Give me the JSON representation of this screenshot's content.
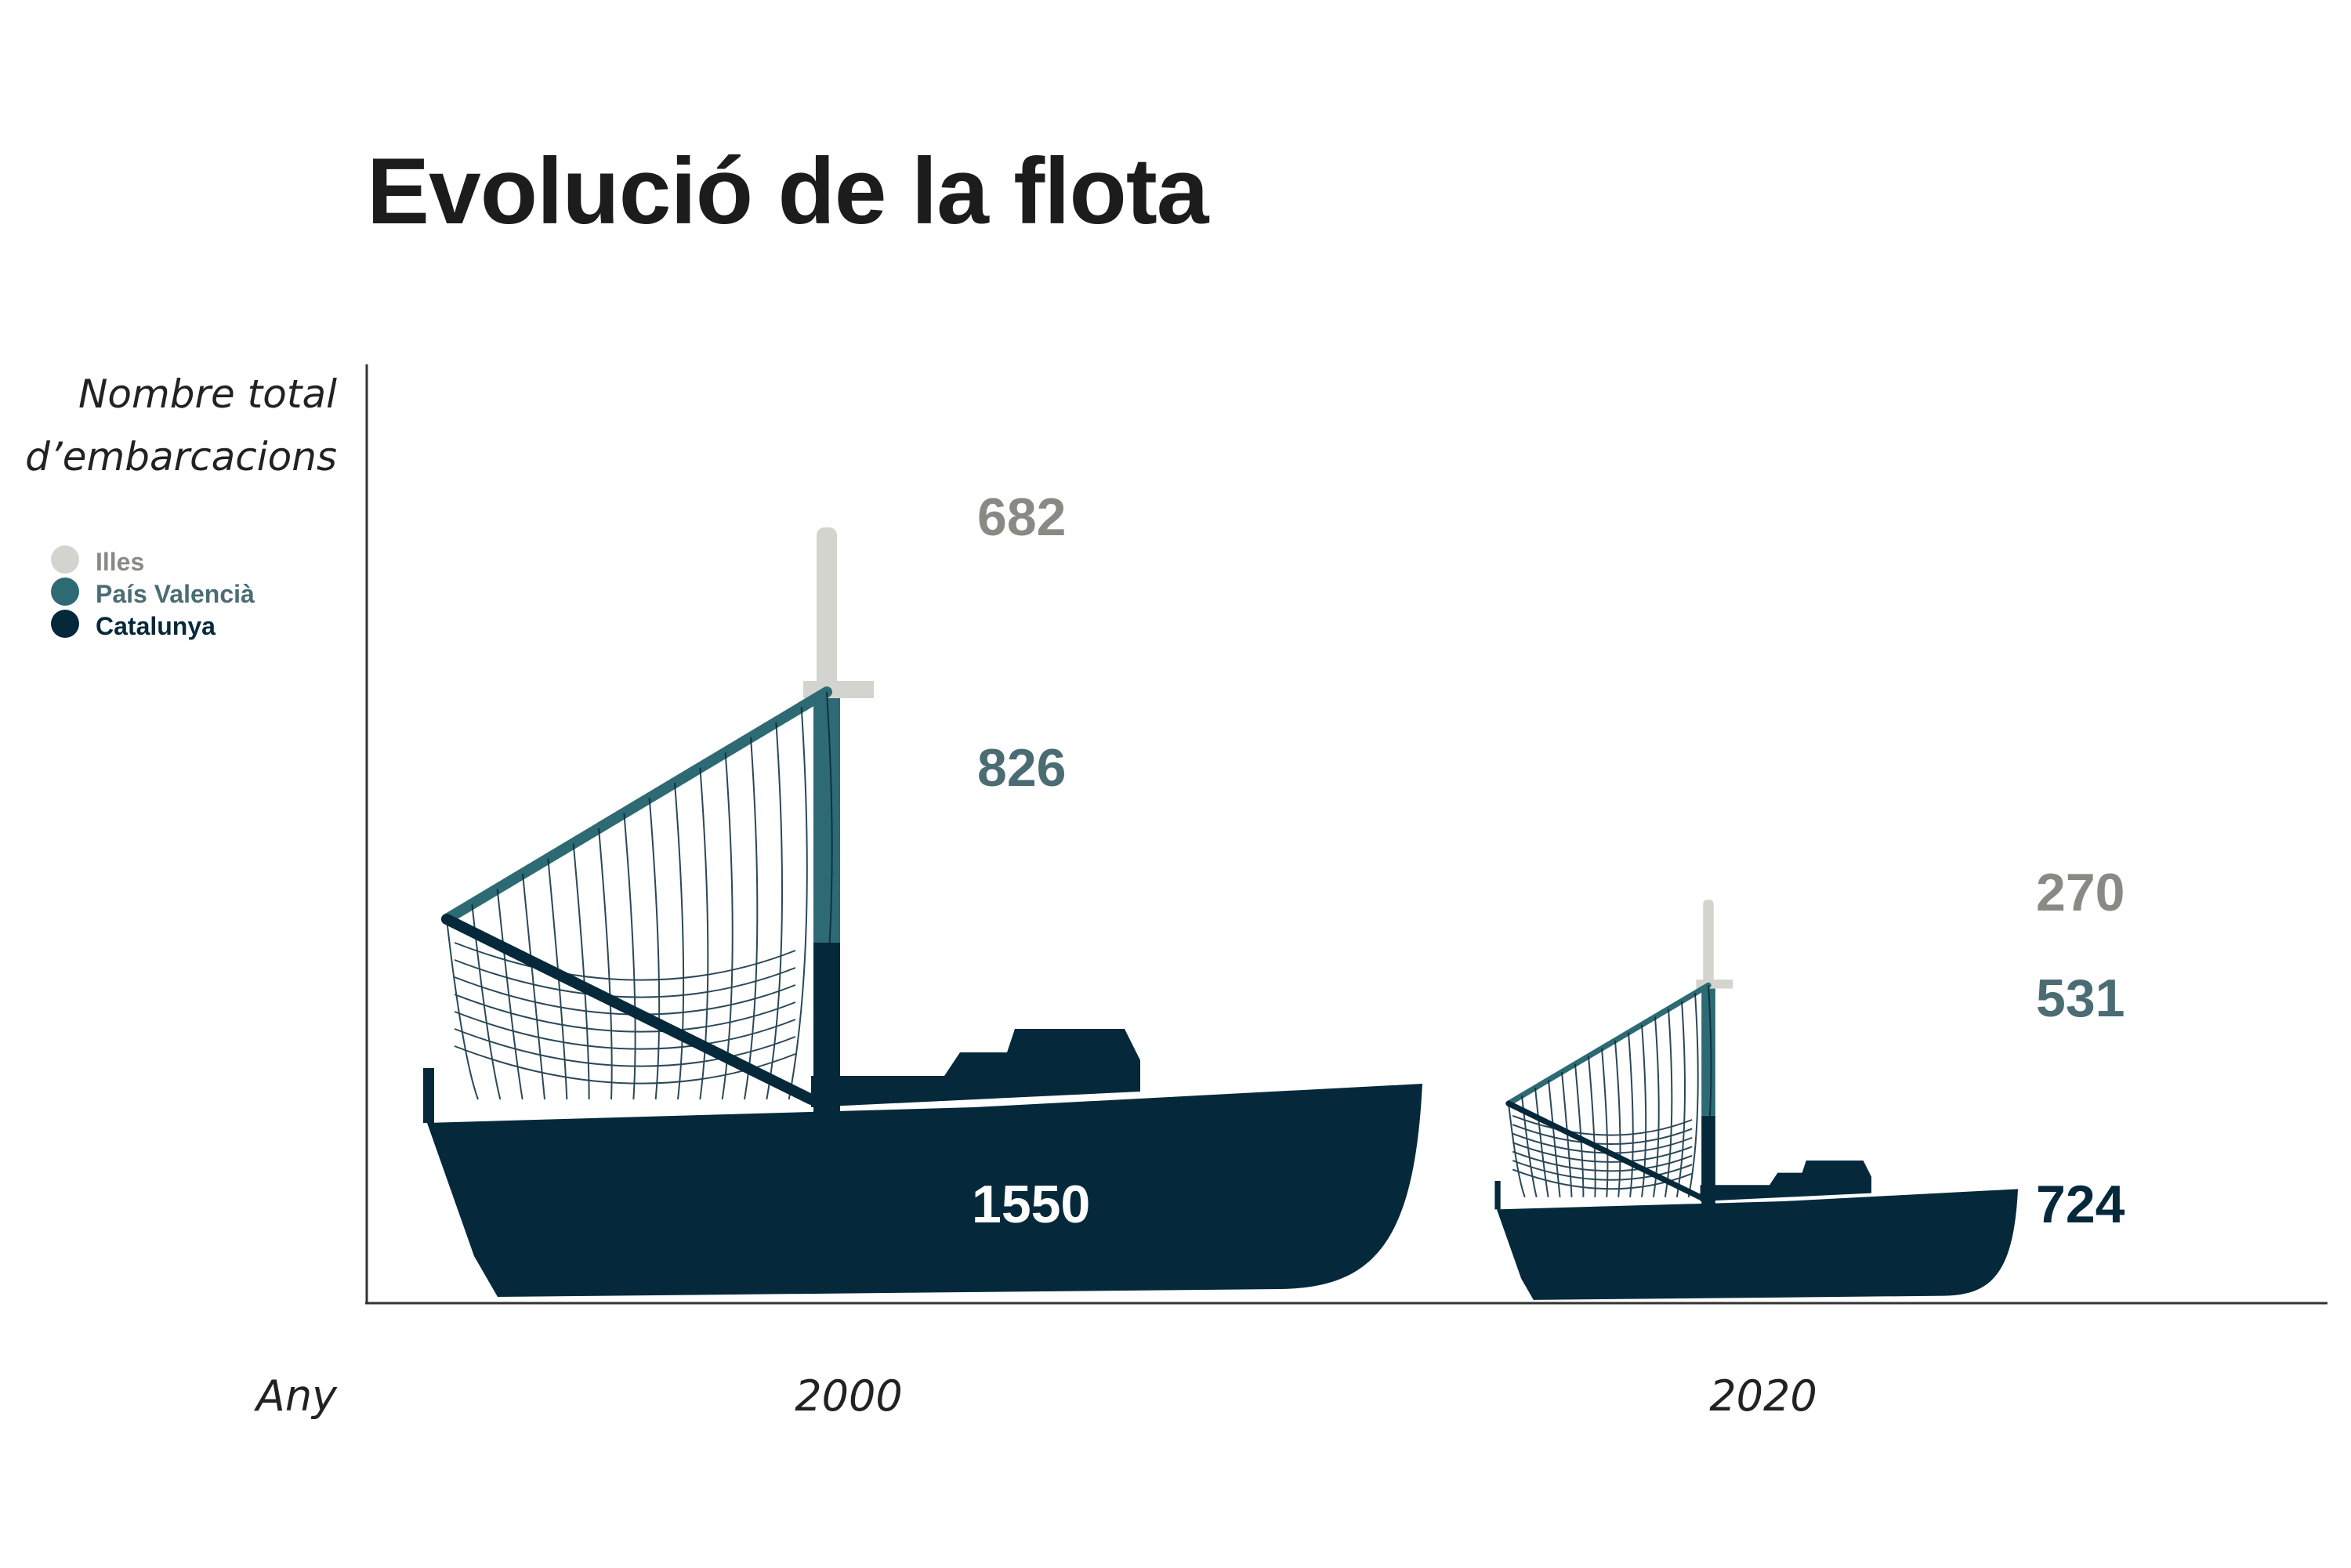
{
  "colors": {
    "illes": "#d4d4cf",
    "illes_text": "#8a8a85",
    "pais_valencia": "#2e6a73",
    "pais_valencia_text": "#4b6c73",
    "catalunya": "#05293b",
    "catalunya_label_inside": "#ffffff",
    "axis": "#333333"
  },
  "chart_data": {
    "type": "bar",
    "title": "Evolució de la flota",
    "ylabel": [
      "Nombre total",
      "d’embarcacions"
    ],
    "xlabel": "Any",
    "categories": [
      "2000",
      "2020"
    ],
    "series": [
      {
        "name": "Illes",
        "values": [
          682,
          270
        ]
      },
      {
        "name": "País Valencià",
        "values": [
          826,
          531
        ]
      },
      {
        "name": "Catalunya",
        "values": [
          1550,
          724
        ]
      }
    ],
    "stacked": true,
    "legend_position": "left",
    "grid": false,
    "value_labels": {
      "2000": {
        "Illes": "682",
        "País Valencià": "826",
        "Catalunya": "1550"
      },
      "2020": {
        "Illes": "270",
        "País Valencià": "531",
        "Catalunya": "724"
      }
    }
  }
}
